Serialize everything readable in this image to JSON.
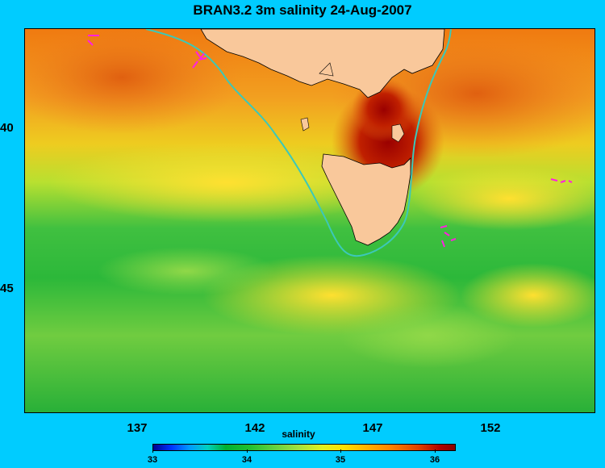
{
  "title": "BRAN3.2 3m salinity 24-Aug-2007",
  "map": {
    "region": "Bass Strait / Tasmania",
    "lon_range": [
      132,
      157
    ],
    "lat_range": [
      -49.5,
      -36.5
    ],
    "lat_labels": [
      "40",
      "45"
    ],
    "lon_labels": [
      "137",
      "142",
      "147",
      "152"
    ],
    "land_color": "#f9c89b",
    "coast_contour_color": "#3cc8b8"
  },
  "colorbar": {
    "title": "salinity",
    "min": 33,
    "max": 36.2,
    "tick_labels": [
      "33",
      "34",
      "35",
      "36"
    ],
    "tick_values": [
      33,
      34,
      35,
      36
    ]
  }
}
